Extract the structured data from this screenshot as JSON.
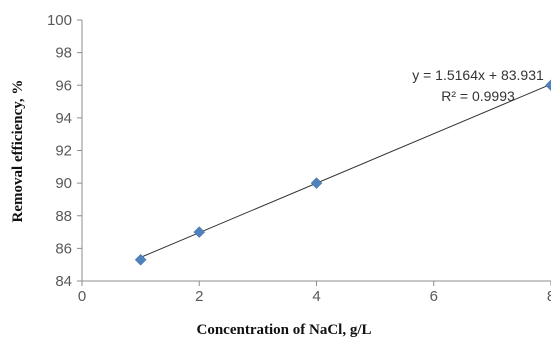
{
  "chart_data": {
    "type": "scatter",
    "xlabel": "Concentration of NaCl, g/L",
    "ylabel": "Removal efficiency, %",
    "xlim": [
      0,
      8
    ],
    "ylim": [
      84,
      100
    ],
    "xticks": [
      "0",
      "2",
      "4",
      "6",
      "8"
    ],
    "yticks": [
      "84",
      "86",
      "88",
      "90",
      "92",
      "94",
      "96",
      "98",
      "100"
    ],
    "grid": false,
    "points": [
      {
        "x": 1,
        "y": 85.3
      },
      {
        "x": 2,
        "y": 87.0
      },
      {
        "x": 4,
        "y": 90.0
      },
      {
        "x": 8,
        "y": 96.0
      }
    ],
    "trendline": {
      "slope": 1.5164,
      "intercept": 83.931
    },
    "annotation": {
      "equation": "y = 1.5164x + 83.931",
      "r2": "R² = 0.9993"
    },
    "colors": {
      "marker": "#4F81BD",
      "line": "#333333",
      "axis": "#8c8c8c"
    }
  }
}
